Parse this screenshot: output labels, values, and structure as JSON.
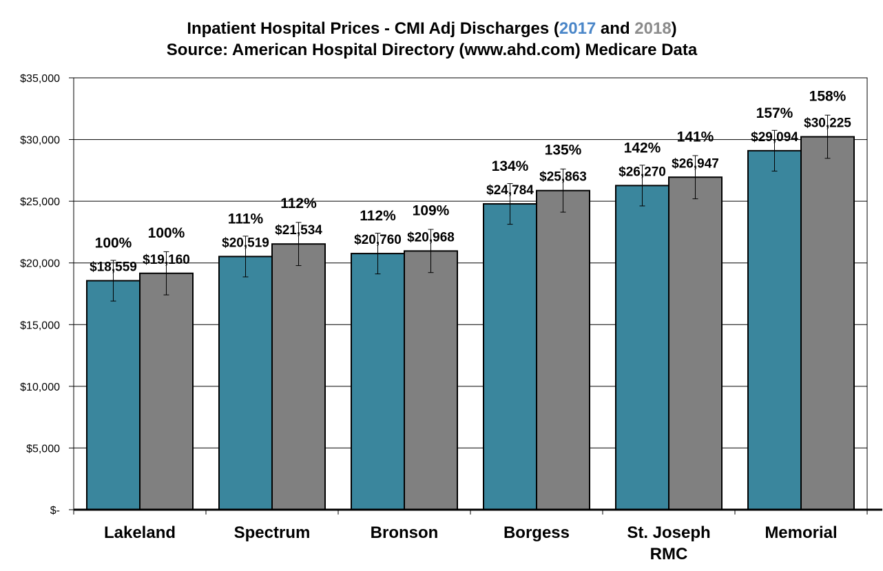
{
  "chart_data": {
    "type": "bar",
    "title_line1_prefix": "Inpatient Hospital Prices - CMI Adj Discharges (",
    "title_line1_year1": "2017",
    "title_line1_mid": " and ",
    "title_line1_year2": "2018",
    "title_line1_suffix": ")",
    "title_line2": "Source: American Hospital Directory (www.ahd.com) Medicare Data",
    "categories": [
      "Lakeland",
      "Spectrum",
      "Bronson",
      "Borgess",
      "St. Joseph\nRMC",
      "Memorial"
    ],
    "series": [
      {
        "name": "2017",
        "color": "#3a869d",
        "values": [
          18559,
          20519,
          20760,
          24784,
          26270,
          29094
        ],
        "value_labels": [
          "$18,559",
          "$20,519",
          "$20,760",
          "$24,784",
          "$26,270",
          "$29,094"
        ],
        "pct_labels": [
          "100%",
          "111%",
          "112%",
          "134%",
          "142%",
          "157%"
        ],
        "error": 1650
      },
      {
        "name": "2018",
        "color": "#808080",
        "values": [
          19160,
          21534,
          20968,
          25863,
          26947,
          30225
        ],
        "value_labels": [
          "$19,160",
          "$21,534",
          "$20,968",
          "$25,863",
          "$26,947",
          "$30,225"
        ],
        "pct_labels": [
          "100%",
          "112%",
          "109%",
          "135%",
          "141%",
          "158%"
        ],
        "error": 1750
      }
    ],
    "title_year_colors": {
      "2017": "#4a86c8",
      "2018": "#8c8c8c"
    },
    "ylim": [
      0,
      35000
    ],
    "yticks": [
      0,
      5000,
      10000,
      15000,
      20000,
      25000,
      30000,
      35000
    ],
    "ytick_labels": [
      "$-",
      "$5,000",
      "$10,000",
      "$15,000",
      "$20,000",
      "$25,000",
      "$30,000",
      "$35,000"
    ],
    "grid": true,
    "legend": "none",
    "xlabel": "",
    "ylabel": ""
  }
}
